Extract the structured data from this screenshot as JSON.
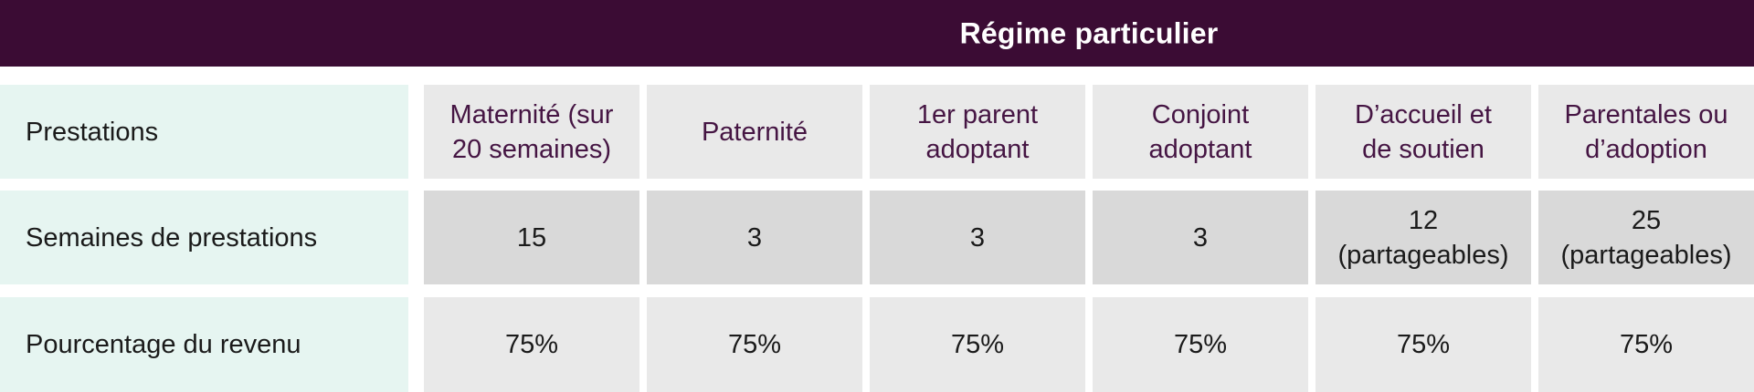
{
  "chart_data": {
    "type": "table",
    "title": "Régime particulier",
    "corner_label": "Prestations",
    "column_headers": [
      "Maternité (sur\n20 semaines)",
      "Paternité",
      "1er parent\nadoptant",
      "Conjoint\nadoptant",
      "D’accueil et\nde soutien",
      "Parentales ou\nd’adoption"
    ],
    "rows": [
      {
        "label": "Semaines de prestations",
        "values": [
          "15",
          "3",
          "3",
          "3",
          "12\n(partageables)",
          "25\n(partageables)"
        ]
      },
      {
        "label": "Pourcentage du revenu",
        "values": [
          "75%",
          "75%",
          "75%",
          "75%",
          "75%",
          "75%"
        ]
      }
    ]
  },
  "colors": {
    "title_bar_bg": "#3b0c34",
    "title_text": "#ffffff",
    "column_header_text": "#451543",
    "label_column_bg": "#e6f5f1",
    "header_row_bg": "#e9e9e9",
    "weeks_row_bg": "#d9d9d9",
    "percent_row_bg": "#e9e9e9",
    "body_text": "#1a1a1a"
  }
}
